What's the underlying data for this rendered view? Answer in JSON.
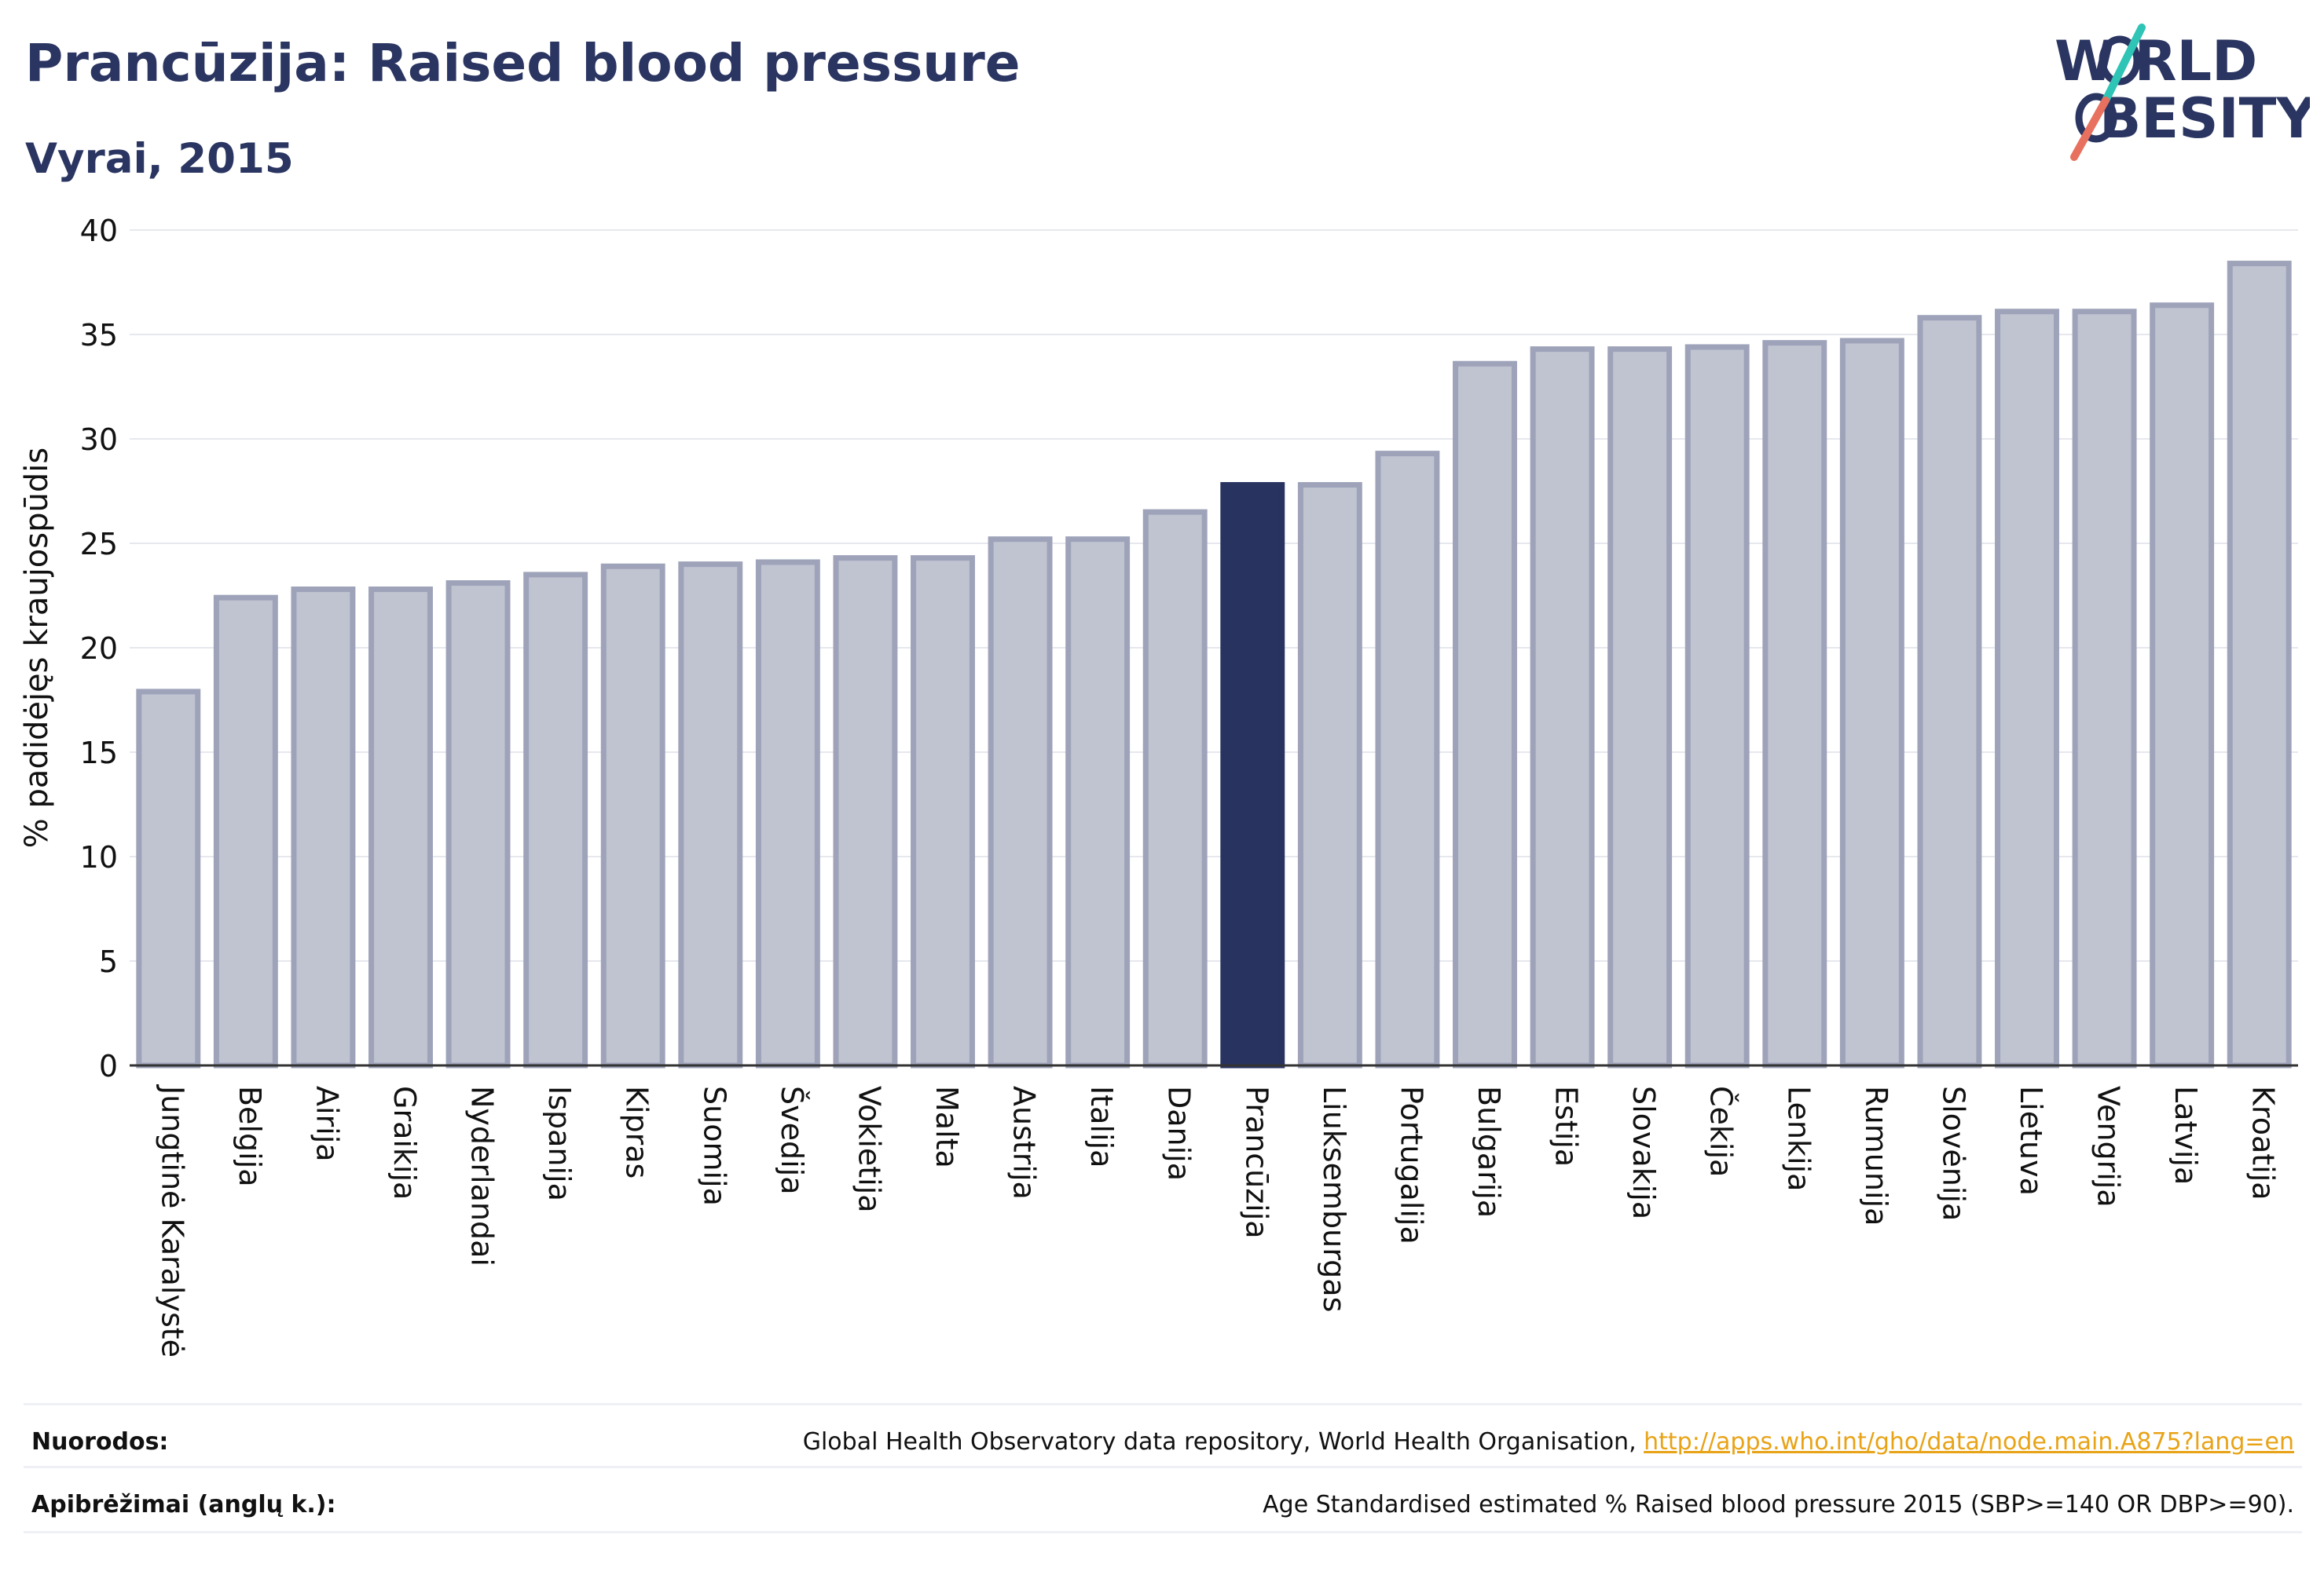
{
  "header": {
    "title": "Prancūzija: Raised blood pressure",
    "subtitle": "Vyrai, 2015"
  },
  "logo": {
    "line1": "W RLD",
    "line2": "BESITY",
    "icon": "world-obesity-logo"
  },
  "colors": {
    "title": "#2a3561",
    "bar_default": "#c0c3d0",
    "bar_default_edge": "#9ea3ba",
    "bar_highlight": "#283360",
    "grid": "#e6e8ee",
    "axis": "#333333",
    "link": "#e8a317",
    "logo_teal": "#2ec4b6",
    "logo_coral": "#e8705f"
  },
  "chart_data": {
    "type": "bar",
    "ylabel": "% padidėjęs kraujospūdis",
    "xlabel": "",
    "ylim": [
      0,
      40
    ],
    "yticks": [
      0,
      5,
      10,
      15,
      20,
      25,
      30,
      35,
      40
    ],
    "grid": true,
    "highlight": "Prancūzija",
    "categories": [
      "Jungtinė Karalystė",
      "Belgija",
      "Airija",
      "Graikija",
      "Nyderlandai",
      "Ispanija",
      "Kipras",
      "Suomija",
      "Švedija",
      "Vokietija",
      "Malta",
      "Austrija",
      "Italija",
      "Danija",
      "Prancūzija",
      "Liuksemburgas",
      "Portugalija",
      "Bulgarija",
      "Estija",
      "Slovakija",
      "Čekija",
      "Lenkija",
      "Rumunija",
      "Slovėnija",
      "Lietuva",
      "Vengrija",
      "Latvija",
      "Kroatija"
    ],
    "values": [
      17.9,
      22.4,
      22.8,
      22.8,
      23.1,
      23.5,
      23.9,
      24.0,
      24.1,
      24.3,
      24.3,
      25.2,
      25.2,
      26.5,
      27.8,
      27.8,
      29.3,
      33.6,
      34.3,
      34.3,
      34.4,
      34.6,
      34.7,
      35.8,
      36.1,
      36.1,
      36.4,
      38.4
    ]
  },
  "footer": {
    "sources_label": "Nuorodos:",
    "sources_text": "Global Health Observatory data repository, World Health Organisation, ",
    "sources_link": "http://apps.who.int/gho/data/node.main.A875?lang=en",
    "definition_label": "Apibrėžimai (anglų k.):",
    "definition_text": "Age Standardised estimated % Raised blood pressure 2015 (SBP>=140 OR DBP>=90)."
  }
}
